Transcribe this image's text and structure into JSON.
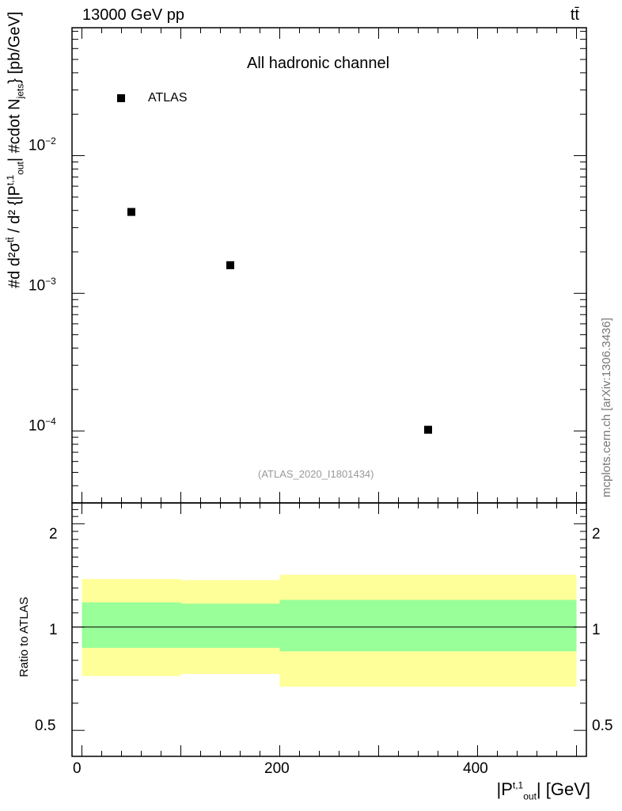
{
  "header": {
    "energy_label": "13000 GeV pp",
    "process_label": "tt̄",
    "channel_label": "All hadronic channel",
    "analysis_id": "(ATLAS_2020_I1801434)",
    "source_note": "mcplots.cern.ch [arXiv:1306.3436]"
  },
  "axes": {
    "ylabel_main": "#d d²σ^{t\\bar{t}} / d² {|P_{out}^{t,1}| #cdot N_{jets}} [pb/GeV]",
    "ylabel_main_parts": {
      "prefix": "#d",
      "numerator": "d²σ",
      "numerator_sup": "tt̄",
      "denominator_pre": "d² {|P",
      "denominator_sup": "t,1",
      "denominator_sub": "out",
      "denominator_post": "| #cdot N",
      "denominator_sub2": "jets",
      "suffix": "} [pb/GeV]"
    },
    "ylabel_ratio": "Ratio to ATLAS",
    "xlabel_pre": "|P",
    "xlabel_sup": "t,1",
    "xlabel_sub": "out",
    "xlabel_post": "| [GeV]",
    "x_ticks": [
      "0",
      "200",
      "400"
    ],
    "main_y_ticks": [
      {
        "base": "10",
        "exp": "−2"
      },
      {
        "base": "10",
        "exp": "−3"
      },
      {
        "base": "10",
        "exp": "−4"
      }
    ],
    "ratio_y_ticks": [
      "2",
      "1",
      "0.5"
    ]
  },
  "chart_data": {
    "type": "scatter",
    "xlim": [
      -10,
      510
    ],
    "main_ylim": [
      3e-05,
      0.085
    ],
    "main_yscale": "log",
    "ratio_ylim": [
      0.42,
      2.3
    ],
    "ratio_yscale": "log",
    "legend": {
      "entries": [
        "ATLAS"
      ],
      "placement": "top-left"
    },
    "series": [
      {
        "name": "ATLAS",
        "x": [
          50,
          150,
          350
        ],
        "y": [
          0.0039,
          0.0016,
          0.000102
        ]
      }
    ],
    "ratio_bands": [
      {
        "x_low": 0,
        "x_high": 100,
        "green_low": 0.87,
        "green_high": 1.18,
        "yellow_low": 0.72,
        "yellow_high": 1.38
      },
      {
        "x_low": 100,
        "x_high": 200,
        "green_low": 0.87,
        "green_high": 1.17,
        "yellow_low": 0.73,
        "yellow_high": 1.37
      },
      {
        "x_low": 200,
        "x_high": 500,
        "green_low": 0.85,
        "green_high": 1.2,
        "yellow_low": 0.67,
        "yellow_high": 1.42
      }
    ],
    "ratio_reference": 1,
    "colors": {
      "marker": "#000000",
      "green_band": "#99ff99",
      "yellow_band": "#ffff99",
      "frame": "#000000"
    }
  }
}
